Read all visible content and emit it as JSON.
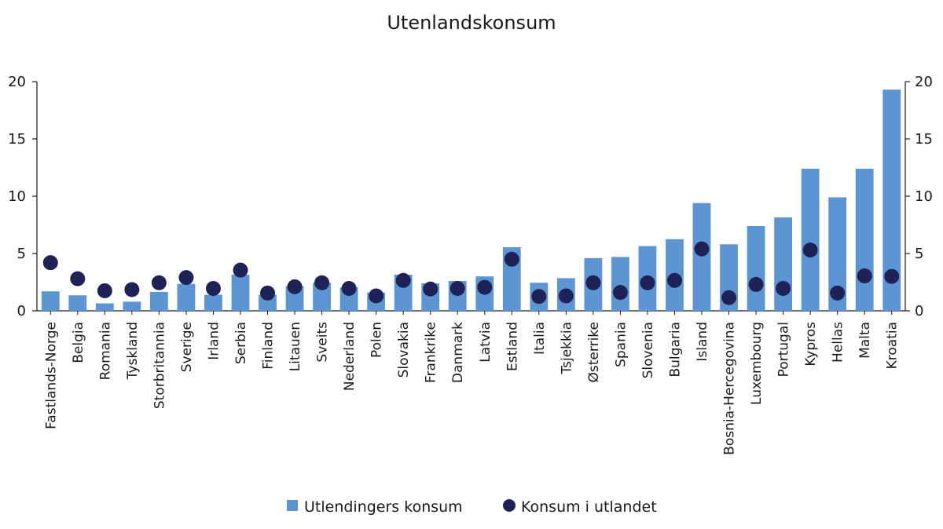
{
  "chart_data": {
    "type": "bar",
    "title": "Utenlandskonsum",
    "categories": [
      "Fastlands-Norge",
      "Belgia",
      "Romania",
      "Tyskland",
      "Storbritannia",
      "Sverige",
      "Irland",
      "Serbia",
      "Finland",
      "Litauen",
      "Sveits",
      "Nederland",
      "Polen",
      "Slovakia",
      "Frankrike",
      "Danmark",
      "Latvia",
      "Estland",
      "Italia",
      "Tsjekkia",
      "Østerrike",
      "Spania",
      "Slovenia",
      "Bulgaria",
      "Island",
      "Bosnia-Hercegovina",
      "Luxembourg",
      "Portugal",
      "Kypros",
      "Hellas",
      "Malta",
      "Kroatia"
    ],
    "series": [
      {
        "name": "Utlendingers konsum",
        "kind": "bar",
        "color": "#5b95d3",
        "values": [
          1.7,
          1.35,
          0.65,
          0.8,
          1.65,
          2.35,
          1.4,
          3.15,
          1.4,
          2.15,
          2.45,
          2.05,
          1.6,
          3.15,
          2.4,
          2.6,
          3.0,
          5.55,
          2.45,
          2.85,
          4.6,
          4.7,
          5.65,
          6.25,
          9.4,
          5.8,
          7.4,
          8.15,
          12.4,
          9.9,
          12.4,
          19.3
        ]
      },
      {
        "name": "Konsum i utlandet",
        "kind": "scatter",
        "color": "#1e2256",
        "values": [
          4.2,
          2.8,
          1.75,
          1.85,
          2.45,
          2.9,
          1.95,
          3.55,
          1.55,
          2.1,
          2.45,
          1.95,
          1.3,
          2.65,
          1.9,
          1.95,
          2.05,
          4.5,
          1.25,
          1.3,
          2.45,
          1.6,
          2.45,
          2.65,
          5.4,
          1.15,
          2.3,
          1.95,
          5.3,
          1.55,
          3.05,
          3.0
        ]
      }
    ],
    "ylim": [
      0,
      20
    ],
    "yticks": [
      "0",
      "5",
      "10",
      "15",
      "20"
    ],
    "ytick_values": [
      0,
      5,
      10,
      15,
      20
    ],
    "right_axis": true,
    "grid": false,
    "legend": "bottom-center",
    "xlabel": "",
    "ylabel": ""
  }
}
